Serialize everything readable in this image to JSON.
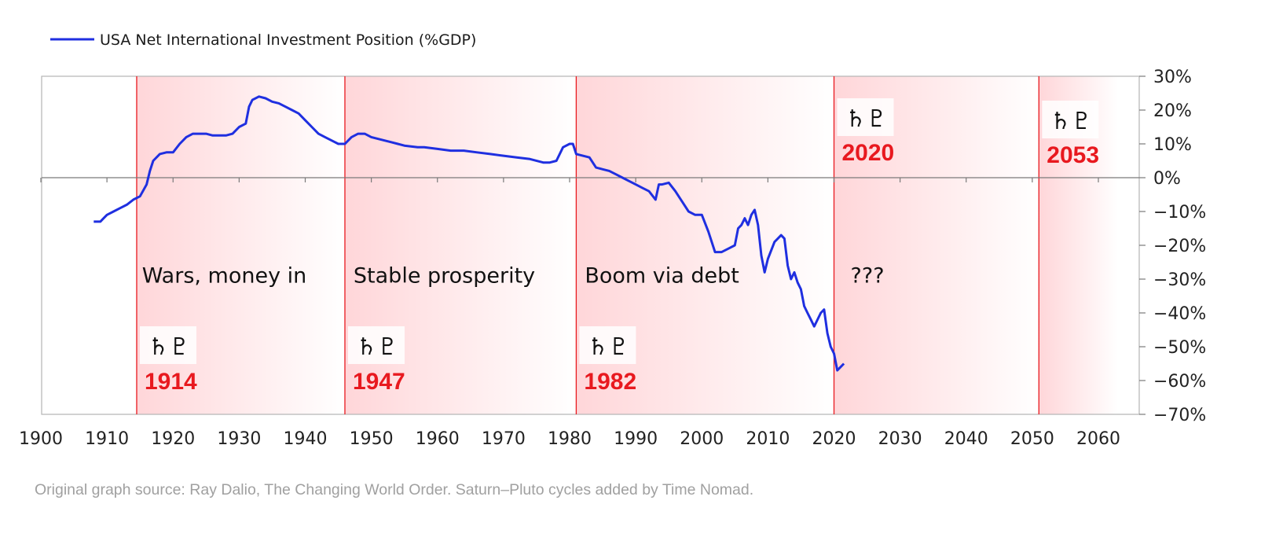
{
  "chart_data": {
    "type": "line",
    "title": "",
    "xlabel": "",
    "ylabel": "",
    "xlim": [
      1900,
      2063
    ],
    "ylim": [
      -70,
      30
    ],
    "x_ticks": [
      1900,
      1910,
      1920,
      1930,
      1940,
      1950,
      1960,
      1970,
      1980,
      1990,
      2000,
      2010,
      2020,
      2030,
      2040,
      2050,
      2060
    ],
    "y_ticks": [
      30,
      20,
      10,
      0,
      -10,
      -20,
      -30,
      -40,
      -50,
      -60,
      -70
    ],
    "y_tick_suffix": "%",
    "legend_position": "top-left",
    "grid": false,
    "colors": {
      "line": "#1f2fe0",
      "cycle": "#e8191f",
      "shade": "#ffd6d9",
      "zero_line": "#7a7a7a",
      "frame": "#b5b5b5"
    },
    "series": [
      {
        "name": "USA Net International Investment Position (%GDP)",
        "points": [
          [
            1908,
            -13
          ],
          [
            1909,
            -13
          ],
          [
            1909.5,
            -12
          ],
          [
            1910,
            -11
          ],
          [
            1911,
            -10
          ],
          [
            1912,
            -9
          ],
          [
            1913,
            -8
          ],
          [
            1914,
            -6.5
          ],
          [
            1915,
            -5.5
          ],
          [
            1916,
            -2
          ],
          [
            1916.5,
            2
          ],
          [
            1917,
            5
          ],
          [
            1918,
            7
          ],
          [
            1919,
            7.5
          ],
          [
            1920,
            7.5
          ],
          [
            1921,
            10
          ],
          [
            1922,
            12
          ],
          [
            1923,
            13
          ],
          [
            1925,
            13
          ],
          [
            1926,
            12.5
          ],
          [
            1927,
            12.5
          ],
          [
            1928,
            12.5
          ],
          [
            1929,
            13
          ],
          [
            1930,
            15
          ],
          [
            1931,
            16
          ],
          [
            1931.5,
            21
          ],
          [
            1932,
            23
          ],
          [
            1933,
            24
          ],
          [
            1934,
            23.5
          ],
          [
            1935,
            22.5
          ],
          [
            1936,
            22
          ],
          [
            1937,
            21
          ],
          [
            1938,
            20
          ],
          [
            1939,
            19
          ],
          [
            1940,
            17
          ],
          [
            1941,
            15
          ],
          [
            1942,
            13
          ],
          [
            1943,
            12
          ],
          [
            1944,
            11
          ],
          [
            1945,
            10
          ],
          [
            1946,
            10
          ],
          [
            1947,
            12
          ],
          [
            1948,
            13
          ],
          [
            1949,
            13
          ],
          [
            1950,
            12
          ],
          [
            1951,
            11.5
          ],
          [
            1952,
            11
          ],
          [
            1953,
            10.5
          ],
          [
            1954,
            10
          ],
          [
            1955,
            9.5
          ],
          [
            1957,
            9
          ],
          [
            1958,
            9
          ],
          [
            1960,
            8.5
          ],
          [
            1962,
            8
          ],
          [
            1964,
            8
          ],
          [
            1966,
            7.5
          ],
          [
            1968,
            7
          ],
          [
            1970,
            6.5
          ],
          [
            1972,
            6
          ],
          [
            1974,
            5.5
          ],
          [
            1976,
            4.5
          ],
          [
            1977,
            4.5
          ],
          [
            1978,
            5
          ],
          [
            1979,
            9
          ],
          [
            1980,
            10
          ],
          [
            1980.5,
            10
          ],
          [
            1981,
            7
          ],
          [
            1982,
            6.5
          ],
          [
            1983,
            6
          ],
          [
            1984,
            3
          ],
          [
            1985,
            2.5
          ],
          [
            1986,
            2
          ],
          [
            1987,
            1
          ],
          [
            1988,
            0
          ],
          [
            1989,
            -1
          ],
          [
            1990,
            -2
          ],
          [
            1991,
            -3
          ],
          [
            1992,
            -4
          ],
          [
            1993,
            -6.5
          ],
          [
            1993.5,
            -2
          ],
          [
            1994,
            -2
          ],
          [
            1995,
            -1.5
          ],
          [
            1996,
            -4
          ],
          [
            1997,
            -7
          ],
          [
            1998,
            -10
          ],
          [
            1999,
            -11
          ],
          [
            2000,
            -11
          ],
          [
            2001,
            -16
          ],
          [
            2002,
            -22
          ],
          [
            2003,
            -22
          ],
          [
            2004,
            -21
          ],
          [
            2005,
            -20
          ],
          [
            2005.5,
            -15
          ],
          [
            2006,
            -14
          ],
          [
            2006.5,
            -12
          ],
          [
            2007,
            -14
          ],
          [
            2007.5,
            -11
          ],
          [
            2008,
            -9.5
          ],
          [
            2008.5,
            -14
          ],
          [
            2009,
            -23
          ],
          [
            2009.5,
            -28
          ],
          [
            2010,
            -24
          ],
          [
            2011,
            -19
          ],
          [
            2011.5,
            -18
          ],
          [
            2012,
            -17
          ],
          [
            2012.5,
            -18
          ],
          [
            2013,
            -26
          ],
          [
            2013.5,
            -30
          ],
          [
            2014,
            -28
          ],
          [
            2014.5,
            -31
          ],
          [
            2015,
            -33
          ],
          [
            2015.5,
            -38
          ],
          [
            2016,
            -40
          ],
          [
            2016.5,
            -42
          ],
          [
            2017,
            -44
          ],
          [
            2017.5,
            -42
          ],
          [
            2018,
            -40
          ],
          [
            2018.5,
            -39
          ],
          [
            2019,
            -46
          ],
          [
            2019.5,
            -50
          ],
          [
            2020,
            -52
          ],
          [
            2020.5,
            -57
          ],
          [
            2021,
            -56
          ],
          [
            2021.5,
            -55
          ]
        ]
      }
    ],
    "cycles": [
      {
        "year": 1914,
        "year_label": "1914",
        "glyph": "♄♇",
        "start": 1914.5,
        "end": 1946
      },
      {
        "year": 1947,
        "year_label": "1947",
        "glyph": "♄♇",
        "start": 1946,
        "end": 1981
      },
      {
        "year": 1982,
        "year_label": "1982",
        "glyph": "♄♇",
        "start": 1981,
        "end": 2020
      },
      {
        "year": 2020,
        "year_label": "2020",
        "glyph": "♄♇",
        "start": 2020,
        "end": 2051
      },
      {
        "year": 2053,
        "year_label": "2053",
        "glyph": "♄♇",
        "start": 2051,
        "end": 2063
      }
    ],
    "era_labels": [
      {
        "text": "Wars, money in",
        "x": 1915.3,
        "y": -29
      },
      {
        "text": "Stable prosperity",
        "x": 1947.3,
        "y": -29
      },
      {
        "text": "Boom via debt",
        "x": 1982.3,
        "y": -29
      },
      {
        "text": "???",
        "x": 2022.5,
        "y": -29
      }
    ]
  },
  "source_note": "Original graph source: Ray Dalio, The Changing World Order. Saturn–Pluto cycles added by Time Nomad."
}
